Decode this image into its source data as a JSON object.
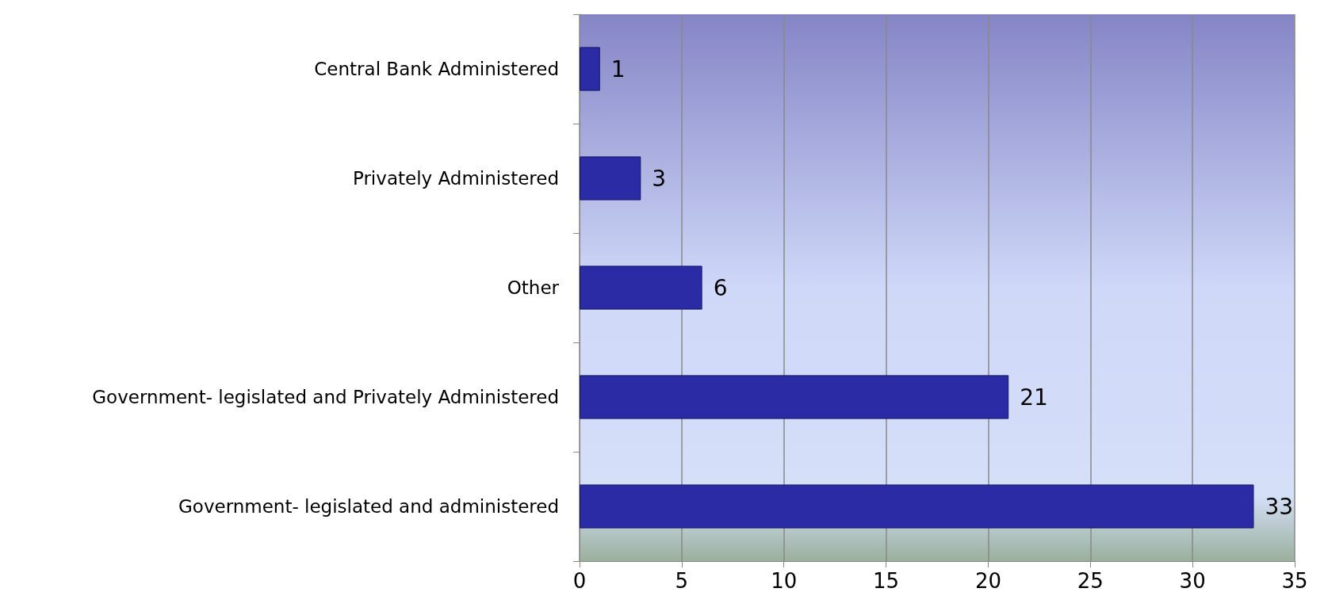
{
  "chart_data": {
    "type": "bar",
    "orientation": "horizontal",
    "categories": [
      "Central Bank Administered",
      "Privately Administered",
      "Other",
      "Government- legislated and Privately Administered",
      "Government- legislated and administered"
    ],
    "values": [
      1,
      3,
      6,
      21,
      33
    ],
    "color": "#2b2ba6",
    "xlim": [
      0,
      35
    ],
    "xticks": [
      0,
      5,
      10,
      15,
      20,
      25,
      30,
      35
    ],
    "grid": "x",
    "data_labels": true
  }
}
